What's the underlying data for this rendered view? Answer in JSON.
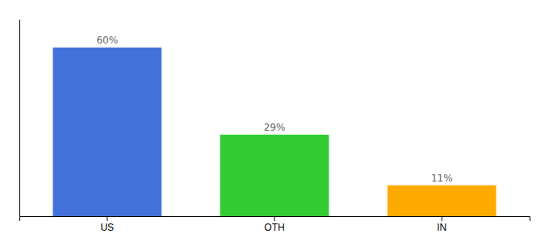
{
  "chart_data": {
    "type": "bar",
    "categories": [
      "US",
      "OTH",
      "IN"
    ],
    "values": [
      60,
      29,
      11
    ],
    "value_labels": [
      "60%",
      "29%",
      "11%"
    ],
    "colors": [
      "#4472db",
      "#33cc33",
      "#ffaa00"
    ],
    "ylim": [
      0,
      70
    ],
    "data_labels": true,
    "tick_labels": "x"
  }
}
